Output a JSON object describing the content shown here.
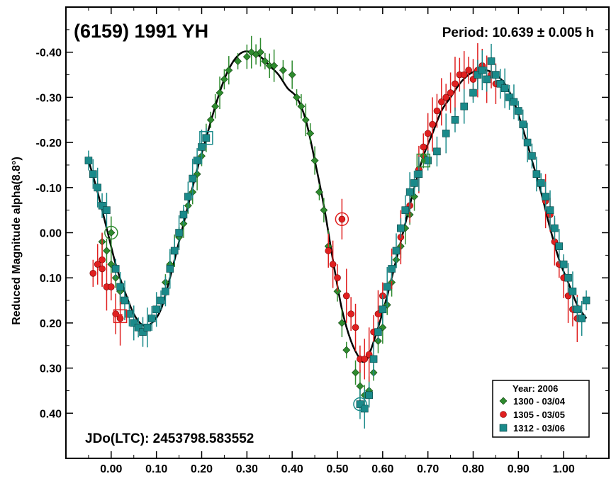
{
  "chart_data": {
    "type": "scatter",
    "title": "(6159) 1991 YH",
    "period_label": "Period: 10.639 ± 0.005 h",
    "epoch_label": "JDo(LTC): 2453798.583552",
    "xlabel": "",
    "ylabel": "Reduced Magnitude alpha(8.8°)",
    "xlim": [
      -0.1,
      1.1
    ],
    "ylim": [
      0.5,
      -0.5
    ],
    "y_inverted": true,
    "x_ticks": [
      0.0,
      0.1,
      0.2,
      0.3,
      0.4,
      0.5,
      0.6,
      0.7,
      0.8,
      0.9,
      1.0
    ],
    "x_tick_labels": [
      "0.00",
      "0.10",
      "0.20",
      "0.30",
      "0.40",
      "0.50",
      "0.60",
      "0.70",
      "0.80",
      "0.90",
      "1.00"
    ],
    "y_ticks": [
      -0.4,
      -0.3,
      -0.2,
      -0.1,
      0.0,
      0.1,
      0.2,
      0.3,
      0.4
    ],
    "y_tick_labels": [
      "-0.40",
      "-0.30",
      "-0.20",
      "-0.10",
      "0.00",
      "0.10",
      "0.20",
      "0.30",
      "0.40"
    ],
    "grid": false,
    "legend": {
      "title": "Year: 2006",
      "placement": "bottom-right"
    },
    "series": [
      {
        "name": "1300 - 03/04",
        "color": "#2e8b2e",
        "marker": "diamond",
        "points": [
          [
            -0.02,
            0.02
          ],
          [
            -0.01,
            0.04
          ],
          [
            0.0,
            0.07
          ],
          [
            0.01,
            0.1
          ],
          [
            0.02,
            0.13
          ],
          [
            0.12,
            0.11
          ],
          [
            0.13,
            0.07
          ],
          [
            0.14,
            0.04
          ],
          [
            0.15,
            0.01
          ],
          [
            0.16,
            -0.02
          ],
          [
            0.17,
            -0.06
          ],
          [
            0.18,
            -0.09
          ],
          [
            0.19,
            -0.13
          ],
          [
            0.2,
            -0.17
          ],
          [
            0.21,
            -0.21
          ],
          [
            0.22,
            -0.25
          ],
          [
            0.23,
            -0.28
          ],
          [
            0.24,
            -0.31
          ],
          [
            0.25,
            -0.34
          ],
          [
            0.26,
            -0.36
          ],
          [
            0.28,
            -0.38
          ],
          [
            0.3,
            -0.39
          ],
          [
            0.31,
            -0.4
          ],
          [
            0.32,
            -0.395
          ],
          [
            0.33,
            -0.4
          ],
          [
            0.34,
            -0.38
          ],
          [
            0.35,
            -0.37
          ],
          [
            0.36,
            -0.37
          ],
          [
            0.38,
            -0.36
          ],
          [
            0.4,
            -0.35
          ],
          [
            0.41,
            -0.3
          ],
          [
            0.42,
            -0.28
          ],
          [
            0.43,
            -0.25
          ],
          [
            0.44,
            -0.22
          ],
          [
            0.45,
            -0.16
          ],
          [
            0.46,
            -0.09
          ],
          [
            0.47,
            -0.05
          ],
          [
            0.48,
            0.03
          ],
          [
            0.5,
            0.13
          ],
          [
            0.51,
            0.2
          ],
          [
            0.52,
            0.26
          ],
          [
            0.54,
            0.31
          ],
          [
            0.55,
            0.34
          ],
          [
            0.56,
            0.36
          ],
          [
            0.57,
            0.35
          ],
          [
            0.58,
            0.31
          ],
          [
            0.59,
            0.24
          ],
          [
            0.6,
            0.21
          ],
          [
            0.61,
            0.16
          ],
          [
            0.62,
            0.11
          ],
          [
            0.63,
            0.06
          ],
          [
            0.64,
            0.03
          ],
          [
            0.65,
            -0.01
          ],
          [
            0.66,
            -0.04
          ],
          [
            0.67,
            -0.08
          ],
          [
            0.68,
            -0.14
          ],
          [
            0.69,
            -0.17
          ],
          [
            0.0,
            0.0
          ]
        ]
      },
      {
        "name": "1305 - 03/05",
        "color": "#e02020",
        "marker": "circle",
        "points": [
          [
            -0.04,
            0.09
          ],
          [
            -0.03,
            0.07
          ],
          [
            -0.02,
            0.06
          ],
          [
            -0.02,
            0.08
          ],
          [
            -0.01,
            0.12
          ],
          [
            0.0,
            0.12
          ],
          [
            0.01,
            0.18
          ],
          [
            0.02,
            0.19
          ],
          [
            0.48,
            0.04
          ],
          [
            0.49,
            0.07
          ],
          [
            0.5,
            0.1
          ],
          [
            0.51,
            -0.03
          ],
          [
            0.52,
            0.14
          ],
          [
            0.53,
            0.18
          ],
          [
            0.54,
            0.21
          ],
          [
            0.55,
            0.28
          ],
          [
            0.56,
            0.28
          ],
          [
            0.57,
            0.27
          ],
          [
            0.58,
            0.22
          ],
          [
            0.59,
            0.18
          ],
          [
            0.6,
            0.14
          ],
          [
            0.62,
            0.08
          ],
          [
            0.64,
            0.01
          ],
          [
            0.66,
            -0.06
          ],
          [
            0.68,
            -0.14
          ],
          [
            0.69,
            -0.19
          ],
          [
            0.7,
            -0.22
          ],
          [
            0.71,
            -0.24
          ],
          [
            0.72,
            -0.27
          ],
          [
            0.73,
            -0.29
          ],
          [
            0.74,
            -0.3
          ],
          [
            0.75,
            -0.31
          ],
          [
            0.76,
            -0.33
          ],
          [
            0.77,
            -0.35
          ],
          [
            0.78,
            -0.35
          ],
          [
            0.79,
            -0.36
          ],
          [
            0.8,
            -0.34
          ],
          [
            0.81,
            -0.36
          ],
          [
            0.82,
            -0.37
          ],
          [
            0.83,
            -0.34
          ],
          [
            0.84,
            -0.35
          ],
          [
            0.85,
            -0.33
          ],
          [
            0.96,
            -0.07
          ],
          [
            0.97,
            -0.04
          ],
          [
            0.98,
            0.02
          ],
          [
            0.99,
            0.07
          ],
          [
            1.0,
            0.1
          ],
          [
            1.01,
            0.14
          ],
          [
            1.02,
            0.17
          ],
          [
            1.03,
            0.19
          ]
        ]
      },
      {
        "name": "1312 - 03/06",
        "color": "#1a8a8a",
        "marker": "square",
        "points": [
          [
            -0.05,
            -0.16
          ],
          [
            -0.04,
            -0.13
          ],
          [
            -0.03,
            -0.1
          ],
          [
            -0.02,
            -0.06
          ],
          [
            -0.01,
            -0.05
          ],
          [
            0.01,
            0.08
          ],
          [
            0.02,
            0.12
          ],
          [
            0.03,
            0.15
          ],
          [
            0.04,
            0.18
          ],
          [
            0.05,
            0.2
          ],
          [
            0.06,
            0.21
          ],
          [
            0.07,
            0.22
          ],
          [
            0.08,
            0.21
          ],
          [
            0.09,
            0.19
          ],
          [
            0.1,
            0.17
          ],
          [
            0.11,
            0.15
          ],
          [
            0.12,
            0.13
          ],
          [
            0.13,
            0.08
          ],
          [
            0.14,
            0.04
          ],
          [
            0.15,
            0.0
          ],
          [
            0.16,
            -0.04
          ],
          [
            0.17,
            -0.08
          ],
          [
            0.18,
            -0.12
          ],
          [
            0.19,
            -0.16
          ],
          [
            0.2,
            -0.19
          ],
          [
            0.21,
            -0.21
          ],
          [
            0.55,
            0.38
          ],
          [
            0.56,
            0.39
          ],
          [
            0.57,
            0.36
          ],
          [
            0.58,
            0.28
          ],
          [
            0.59,
            0.22
          ],
          [
            0.6,
            0.17
          ],
          [
            0.61,
            0.12
          ],
          [
            0.62,
            0.08
          ],
          [
            0.63,
            0.04
          ],
          [
            0.64,
            -0.01
          ],
          [
            0.65,
            -0.05
          ],
          [
            0.66,
            -0.09
          ],
          [
            0.67,
            -0.11
          ],
          [
            0.68,
            -0.13
          ],
          [
            0.7,
            -0.16
          ],
          [
            0.72,
            -0.18
          ],
          [
            0.74,
            -0.22
          ],
          [
            0.76,
            -0.25
          ],
          [
            0.78,
            -0.28
          ],
          [
            0.8,
            -0.31
          ],
          [
            0.81,
            -0.35
          ],
          [
            0.82,
            -0.36
          ],
          [
            0.83,
            -0.34
          ],
          [
            0.84,
            -0.38
          ],
          [
            0.85,
            -0.35
          ],
          [
            0.86,
            -0.33
          ],
          [
            0.87,
            -0.32
          ],
          [
            0.88,
            -0.3
          ],
          [
            0.89,
            -0.29
          ],
          [
            0.9,
            -0.27
          ],
          [
            0.91,
            -0.24
          ],
          [
            0.92,
            -0.2
          ],
          [
            0.93,
            -0.17
          ],
          [
            0.94,
            -0.13
          ],
          [
            0.95,
            -0.11
          ],
          [
            0.96,
            -0.08
          ],
          [
            0.97,
            -0.05
          ],
          [
            0.98,
            -0.01
          ],
          [
            0.99,
            0.03
          ],
          [
            1.0,
            0.07
          ],
          [
            1.01,
            0.1
          ],
          [
            1.02,
            0.13
          ],
          [
            1.03,
            0.17
          ],
          [
            1.04,
            0.19
          ],
          [
            1.05,
            0.15
          ]
        ]
      }
    ],
    "fit_curve": {
      "color": "#000000",
      "points": [
        [
          -0.05,
          -0.16
        ],
        [
          -0.03,
          -0.09
        ],
        [
          -0.01,
          -0.01
        ],
        [
          0.01,
          0.07
        ],
        [
          0.03,
          0.13
        ],
        [
          0.05,
          0.18
        ],
        [
          0.07,
          0.205
        ],
        [
          0.09,
          0.2
        ],
        [
          0.11,
          0.17
        ],
        [
          0.13,
          0.1
        ],
        [
          0.15,
          0.02
        ],
        [
          0.17,
          -0.06
        ],
        [
          0.19,
          -0.14
        ],
        [
          0.21,
          -0.21
        ],
        [
          0.23,
          -0.28
        ],
        [
          0.25,
          -0.34
        ],
        [
          0.27,
          -0.38
        ],
        [
          0.29,
          -0.4
        ],
        [
          0.31,
          -0.4
        ],
        [
          0.33,
          -0.39
        ],
        [
          0.35,
          -0.37
        ],
        [
          0.37,
          -0.35
        ],
        [
          0.39,
          -0.32
        ],
        [
          0.41,
          -0.3
        ],
        [
          0.43,
          -0.25
        ],
        [
          0.45,
          -0.16
        ],
        [
          0.47,
          -0.06
        ],
        [
          0.49,
          0.06
        ],
        [
          0.51,
          0.17
        ],
        [
          0.53,
          0.24
        ],
        [
          0.55,
          0.28
        ],
        [
          0.56,
          0.285
        ],
        [
          0.57,
          0.27
        ],
        [
          0.59,
          0.21
        ],
        [
          0.61,
          0.14
        ],
        [
          0.63,
          0.06
        ],
        [
          0.65,
          -0.02
        ],
        [
          0.67,
          -0.1
        ],
        [
          0.69,
          -0.17
        ],
        [
          0.71,
          -0.22
        ],
        [
          0.73,
          -0.27
        ],
        [
          0.75,
          -0.3
        ],
        [
          0.77,
          -0.33
        ],
        [
          0.79,
          -0.35
        ],
        [
          0.81,
          -0.36
        ],
        [
          0.83,
          -0.36
        ],
        [
          0.85,
          -0.35
        ],
        [
          0.87,
          -0.33
        ],
        [
          0.89,
          -0.29
        ],
        [
          0.91,
          -0.23
        ],
        [
          0.93,
          -0.16
        ],
        [
          0.95,
          -0.09
        ],
        [
          0.97,
          -0.01
        ],
        [
          0.99,
          0.06
        ],
        [
          1.01,
          0.11
        ],
        [
          1.03,
          0.16
        ],
        [
          1.05,
          0.19
        ]
      ]
    },
    "outliers": [
      {
        "x": 0.0,
        "y": 0.0,
        "color": "#2e8b2e",
        "shape": "circle"
      },
      {
        "x": 0.02,
        "y": 0.185,
        "color": "#e02020",
        "shape": "square"
      },
      {
        "x": 0.21,
        "y": -0.21,
        "color": "#1a8a8a",
        "shape": "square"
      },
      {
        "x": 0.51,
        "y": -0.03,
        "color": "#e02020",
        "shape": "circle"
      },
      {
        "x": 0.55,
        "y": 0.38,
        "color": "#1a8a8a",
        "shape": "circle"
      },
      {
        "x": 0.69,
        "y": -0.16,
        "color": "#2e8b2e",
        "shape": "square"
      }
    ]
  }
}
